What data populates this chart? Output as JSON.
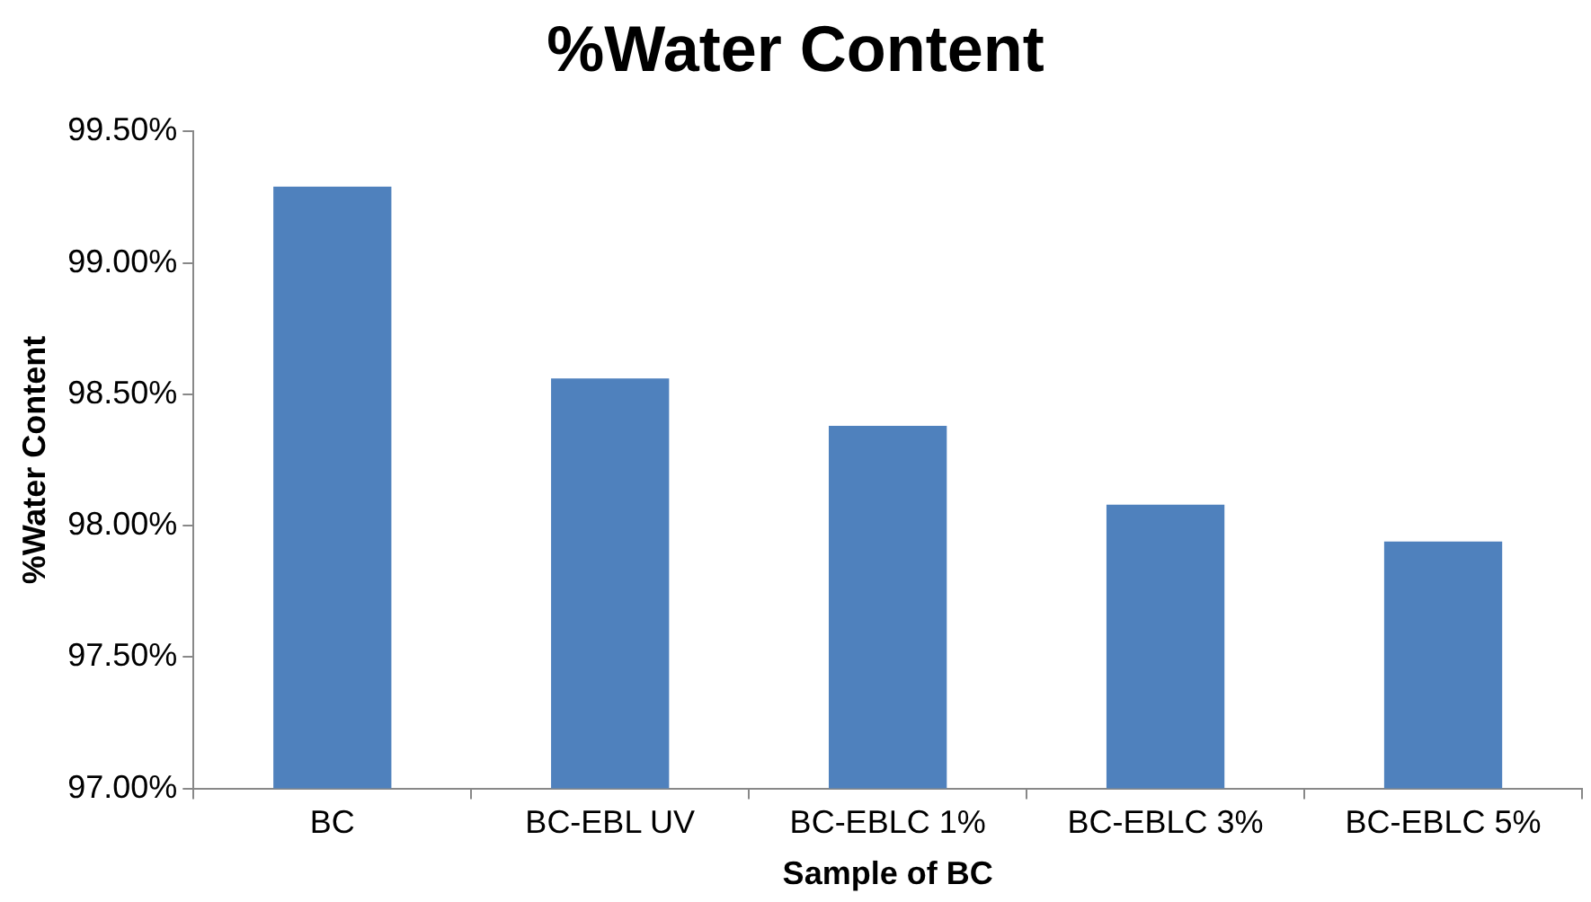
{
  "chart_data": {
    "type": "bar",
    "title": "%Water Content",
    "xlabel": "Sample of BC",
    "ylabel": "%Water Content",
    "categories": [
      "BC",
      "BC-EBL UV",
      "BC-EBLC 1%",
      "BC-EBLC 3%",
      "BC-EBLC 5%"
    ],
    "values": [
      99.29,
      98.56,
      98.38,
      98.08,
      97.94
    ],
    "color": "#4f81bd",
    "ylim": [
      97,
      99.5
    ],
    "yticks": [
      {
        "value": 97,
        "label": "97.00%"
      },
      {
        "value": 97.5,
        "label": "97.50%"
      },
      {
        "value": 98,
        "label": "98.00%"
      },
      {
        "value": 98.5,
        "label": "98.50%"
      },
      {
        "value": 99,
        "label": "99.00%"
      },
      {
        "value": 99.5,
        "label": "99.50%"
      }
    ],
    "grid": false,
    "legend": false
  }
}
